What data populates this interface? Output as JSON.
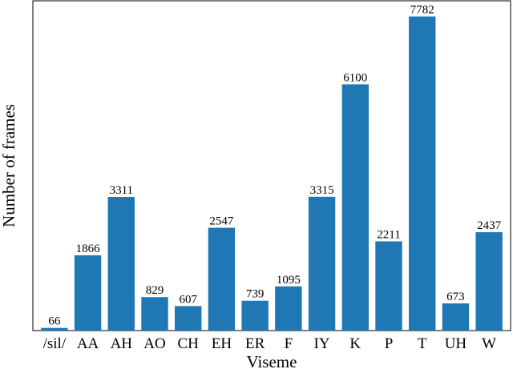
{
  "chart_data": {
    "type": "bar",
    "title": "",
    "xlabel": "Viseme",
    "ylabel": "Number of frames",
    "categories": [
      "/sil/",
      "AA",
      "AH",
      "AO",
      "CH",
      "EH",
      "ER",
      "F",
      "IY",
      "K",
      "P",
      "T",
      "UH",
      "W"
    ],
    "values": [
      66,
      1866,
      3311,
      829,
      607,
      2547,
      739,
      1095,
      3315,
      6100,
      2211,
      7782,
      673,
      2437
    ],
    "data_labels": [
      "66",
      "1866",
      "3311",
      "829",
      "607",
      "2547",
      "739",
      "1095",
      "3315",
      "6100",
      "2211",
      "7782",
      "673",
      "2437"
    ],
    "ylim": [
      0,
      8170
    ],
    "grid": false,
    "legend": "none",
    "bar_color": "#1f77b4"
  }
}
